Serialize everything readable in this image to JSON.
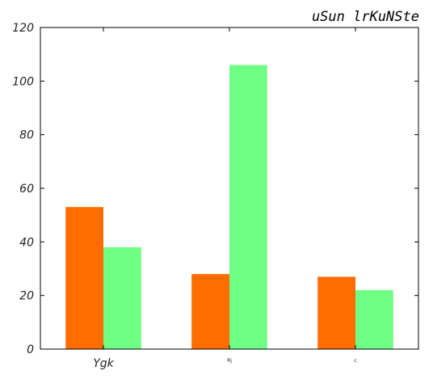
{
  "chart_data": {
    "type": "bar",
    "title": "uSun  lrKuNSte",
    "categories": [
      "Ygk",
      "Rj",
      "c"
    ],
    "series": [
      {
        "values": [
          53,
          28,
          27
        ],
        "color": "#ff6d00"
      },
      {
        "values": [
          38,
          106,
          22
        ],
        "color": "#70ff85"
      }
    ],
    "ylim": [
      0,
      120
    ],
    "yticks": [
      0,
      20,
      40,
      60,
      80,
      100,
      120
    ],
    "grid": false,
    "xlabel": "",
    "ylabel": ""
  }
}
